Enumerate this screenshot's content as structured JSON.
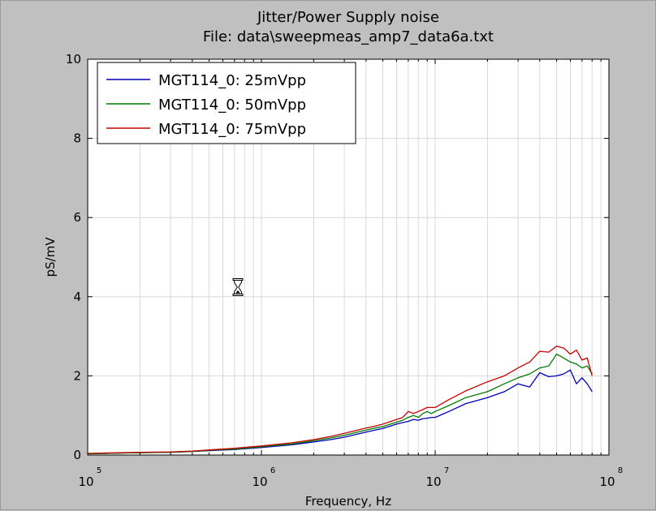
{
  "chart_data": {
    "type": "line",
    "title": "Jitter/Power Supply noise",
    "subtitle": "File: data\\sweepmeas_amp7_data6a.txt",
    "xlabel": "Frequency, Hz",
    "ylabel": "pS/mV",
    "xscale": "log",
    "xlim": [
      100000,
      100000000
    ],
    "ylim": [
      0,
      10
    ],
    "x_ticks": [
      {
        "base": "10",
        "exp": "5"
      },
      {
        "base": "10",
        "exp": "6"
      },
      {
        "base": "10",
        "exp": "7"
      },
      {
        "base": "10",
        "exp": "8"
      }
    ],
    "y_ticks": [
      "0",
      "2",
      "4",
      "6",
      "8",
      "10"
    ],
    "grid": true,
    "legend": "top-left",
    "series": [
      {
        "name": "MGT114_0: 25mVpp",
        "color": "#0000b8",
        "x": [
          100000,
          150000,
          200000,
          300000,
          400000,
          500000,
          700000,
          1000000,
          1500000,
          2000000,
          2500000,
          3000000,
          3500000,
          4000000,
          4500000,
          5000000,
          6000000,
          6500000,
          7000000,
          7500000,
          8000000,
          8500000,
          9000000,
          9500000,
          10000000,
          12000000,
          15000000,
          20000000,
          25000000,
          30000000,
          35000000,
          40000000,
          45000000,
          50000000,
          55000000,
          60000000,
          65000000,
          70000000,
          75000000,
          80000000
        ],
        "y": [
          0.03,
          0.05,
          0.06,
          0.07,
          0.09,
          0.11,
          0.14,
          0.19,
          0.26,
          0.33,
          0.39,
          0.45,
          0.52,
          0.58,
          0.63,
          0.67,
          0.78,
          0.82,
          0.85,
          0.9,
          0.88,
          0.92,
          0.93,
          0.95,
          0.95,
          1.1,
          1.3,
          1.45,
          1.6,
          1.8,
          1.72,
          2.08,
          1.98,
          2.0,
          2.05,
          2.15,
          1.8,
          1.95,
          1.8,
          1.6
        ]
      },
      {
        "name": "MGT114_0: 50mVpp",
        "color": "#007a00",
        "x": [
          100000,
          150000,
          200000,
          300000,
          400000,
          500000,
          700000,
          1000000,
          1500000,
          2000000,
          2500000,
          3000000,
          3500000,
          4000000,
          4500000,
          5000000,
          6000000,
          6500000,
          7000000,
          7500000,
          8000000,
          8500000,
          9000000,
          9500000,
          10000000,
          12000000,
          15000000,
          20000000,
          25000000,
          30000000,
          35000000,
          40000000,
          45000000,
          50000000,
          55000000,
          60000000,
          65000000,
          70000000,
          75000000,
          80000000
        ],
        "y": [
          0.03,
          0.05,
          0.06,
          0.07,
          0.09,
          0.12,
          0.15,
          0.21,
          0.28,
          0.36,
          0.43,
          0.5,
          0.57,
          0.63,
          0.68,
          0.72,
          0.83,
          0.88,
          0.95,
          1.0,
          0.95,
          1.05,
          1.1,
          1.05,
          1.1,
          1.25,
          1.45,
          1.6,
          1.8,
          1.95,
          2.05,
          2.2,
          2.25,
          2.55,
          2.45,
          2.35,
          2.3,
          2.2,
          2.25,
          2.05
        ]
      },
      {
        "name": "MGT114_0: 75mVpp",
        "color": "#c80000",
        "x": [
          100000,
          150000,
          200000,
          300000,
          400000,
          500000,
          700000,
          1000000,
          1500000,
          2000000,
          2500000,
          3000000,
          3500000,
          4000000,
          4500000,
          5000000,
          6000000,
          6500000,
          7000000,
          7500000,
          8000000,
          8500000,
          9000000,
          9500000,
          10000000,
          12000000,
          15000000,
          20000000,
          25000000,
          30000000,
          35000000,
          40000000,
          45000000,
          50000000,
          55000000,
          60000000,
          65000000,
          70000000,
          75000000,
          80000000
        ],
        "y": [
          0.04,
          0.06,
          0.07,
          0.08,
          0.1,
          0.13,
          0.17,
          0.23,
          0.31,
          0.39,
          0.47,
          0.55,
          0.62,
          0.68,
          0.73,
          0.78,
          0.9,
          0.95,
          1.1,
          1.05,
          1.1,
          1.15,
          1.2,
          1.2,
          1.2,
          1.4,
          1.62,
          1.85,
          2.0,
          2.2,
          2.35,
          2.62,
          2.6,
          2.75,
          2.7,
          2.55,
          2.65,
          2.4,
          2.45,
          2.0
        ]
      }
    ]
  }
}
